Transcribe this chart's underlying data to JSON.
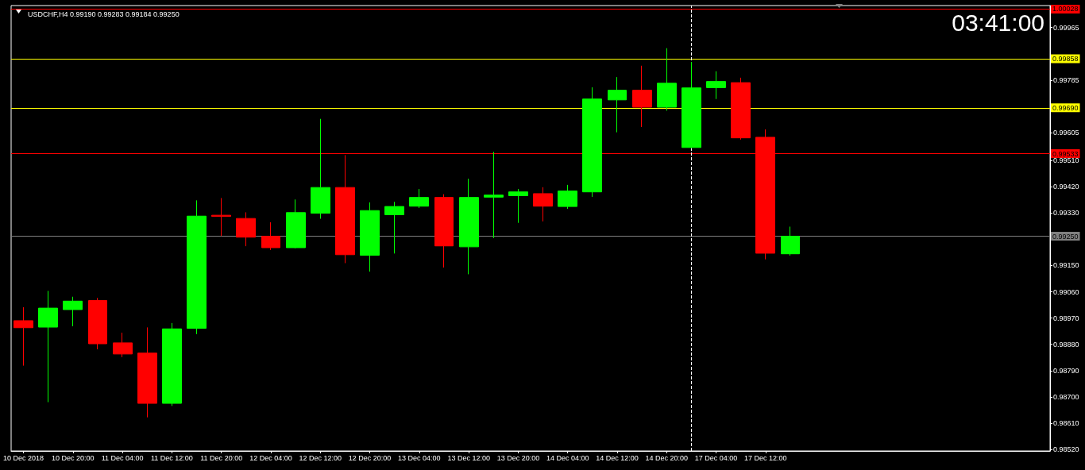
{
  "chart_data": {
    "type": "candlestick",
    "title": "USDCHF,H4 0.99190 0.99283 0.99184 0.99250",
    "annotations": [
      "03:41:00"
    ],
    "categories": [
      "10 Dec 2018",
      null,
      "10 Dec 20:00",
      null,
      "11 Dec 04:00",
      null,
      "11 Dec 12:00",
      null,
      "11 Dec 20:00",
      null,
      "12 Dec 04:00",
      null,
      "12 Dec 12:00",
      null,
      "12 Dec 20:00",
      null,
      "13 Dec 04:00",
      null,
      "13 Dec 12:00",
      null,
      "13 Dec 20:00",
      null,
      "14 Dec 04:00",
      null,
      "14 Dec 12:00",
      null,
      "14 Dec 20:00",
      null,
      "17 Dec 04:00",
      null,
      "17 Dec 12:00",
      null,
      null,
      null,
      null,
      null,
      null,
      null,
      null,
      null,
      null,
      null
    ],
    "ohlc": [
      [
        0.98961,
        0.99007,
        0.98807,
        0.98937
      ],
      [
        0.98939,
        0.99063,
        0.98682,
        0.99004
      ],
      [
        0.98999,
        0.99043,
        0.98942,
        0.99028
      ],
      [
        0.9903,
        0.99039,
        0.98863,
        0.98882
      ],
      [
        0.98885,
        0.9892,
        0.98836,
        0.98847
      ],
      [
        0.9885,
        0.98938,
        0.9863,
        0.98678
      ],
      [
        0.98678,
        0.98953,
        0.98669,
        0.98933
      ],
      [
        0.98935,
        0.99373,
        0.98915,
        0.99319
      ],
      [
        0.99322,
        0.99381,
        0.99251,
        0.99318
      ],
      [
        0.99311,
        0.99332,
        0.99216,
        0.99247
      ],
      [
        0.9925,
        0.99298,
        0.99203,
        0.99211
      ],
      [
        0.99211,
        0.99376,
        0.99209,
        0.99331
      ],
      [
        0.99329,
        0.99652,
        0.9931,
        0.99417
      ],
      [
        0.99417,
        0.99528,
        0.99158,
        0.99187
      ],
      [
        0.99185,
        0.99366,
        0.99129,
        0.99338
      ],
      [
        0.99324,
        0.99368,
        0.99191,
        0.99352
      ],
      [
        0.99353,
        0.99412,
        0.99347,
        0.99383
      ],
      [
        0.99383,
        0.99394,
        0.99143,
        0.99217
      ],
      [
        0.99214,
        0.99447,
        0.9912,
        0.99383
      ],
      [
        0.99384,
        0.99539,
        0.99244,
        0.99391
      ],
      [
        0.99389,
        0.99412,
        0.99296,
        0.99402
      ],
      [
        0.99396,
        0.99418,
        0.99301,
        0.99353
      ],
      [
        0.99352,
        0.99426,
        0.99344,
        0.99405
      ],
      [
        0.99402,
        0.9976,
        0.99385,
        0.9972
      ],
      [
        0.99717,
        0.99795,
        0.99606,
        0.9975
      ],
      [
        0.9975,
        0.99834,
        0.99624,
        0.99692
      ],
      [
        0.99692,
        0.99894,
        0.9968,
        0.99774
      ],
      [
        0.99554,
        0.99847,
        0.99552,
        0.99758
      ],
      [
        0.99759,
        0.99815,
        0.9972,
        0.9978
      ],
      [
        0.99776,
        0.99793,
        0.99581,
        0.99587
      ],
      [
        0.99589,
        0.99616,
        0.99171,
        0.99192
      ],
      [
        0.9919,
        0.99283,
        0.99184,
        0.9925
      ],
      null,
      null,
      null,
      null,
      null,
      null,
      null,
      null,
      null,
      null
    ],
    "colors": [
      "#ff0000",
      "#00ff00",
      "#00ff00",
      "#ff0000",
      "#ff0000",
      "#ff0000",
      "#00ff00",
      "#00ff00",
      "#ff0000",
      "#ff0000",
      "#ff0000",
      "#00ff00",
      "#00ff00",
      "#ff0000",
      "#00ff00",
      "#00ff00",
      "#00ff00",
      "#ff0000",
      "#00ff00",
      "#00ff00",
      "#00ff00",
      "#ff0000",
      "#00ff00",
      "#00ff00",
      "#00ff00",
      "#ff0000",
      "#00ff00",
      "#00ff00",
      "#00ff00",
      "#ff0000",
      "#ff0000",
      "#00ff00",
      null,
      null,
      null,
      null,
      null,
      null,
      null,
      null,
      null,
      null
    ],
    "ylim": [
      0.98515,
      1.0004
    ],
    "yticks": [
      0.99965,
      0.99785,
      0.99605,
      {
        "value": 0.9951,
        "label": "0.99510"
      },
      {
        "value": 0.9942,
        "label": "0.99420"
      },
      {
        "value": 0.9933,
        "label": "0.99330"
      },
      {
        "value": 0.9915,
        "label": "0.99150"
      },
      {
        "value": 0.9906,
        "label": "0.99060"
      },
      {
        "value": 0.9897,
        "label": "0.98970"
      },
      {
        "value": 0.9888,
        "label": "0.98880"
      },
      {
        "value": 0.9879,
        "label": "0.98790"
      },
      {
        "value": 0.987,
        "label": "0.98700"
      },
      {
        "value": 0.9861,
        "label": "0.98610"
      },
      {
        "value": 0.9852,
        "label": "0.98520"
      }
    ],
    "ref_lines": [
      {
        "axis": "y",
        "value": 1.00028,
        "label": "1.00028",
        "color": "#ff0000"
      },
      {
        "axis": "y",
        "value": 0.99858,
        "label": "0.99858",
        "color": "#ffff00"
      },
      {
        "axis": "y",
        "value": 0.9969,
        "label": "0.99690",
        "color": "#ffff00"
      },
      {
        "axis": "y",
        "value": 0.99533,
        "label": "0.99533",
        "color": "#ff0000"
      },
      {
        "axis": "y",
        "value": 0.9925,
        "label": "0.99250",
        "color": "#808080"
      }
    ]
  }
}
